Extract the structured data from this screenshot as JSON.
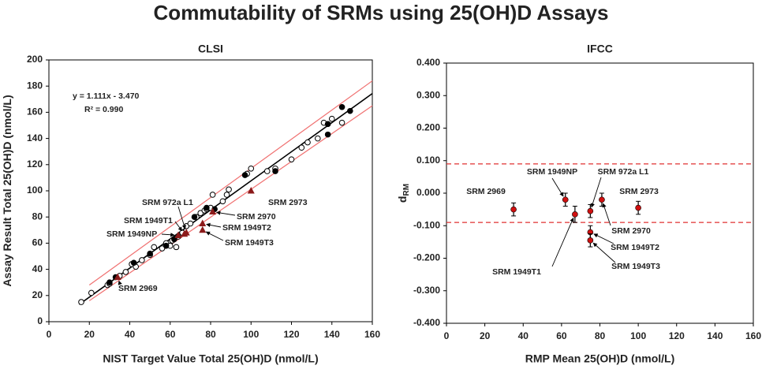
{
  "title": "Commutability of SRMs using 25(OH)D Assays",
  "chart_data": [
    {
      "type": "scatter",
      "title": "CLSI",
      "xlabel": "NIST Target Value Total 25(OH)D (nmol/L)",
      "ylabel": "Assay Result Total 25(OH)D (nmol/L)",
      "xlim": [
        0,
        160
      ],
      "ylim": [
        0,
        200
      ],
      "xticks": [
        0,
        20,
        40,
        60,
        80,
        100,
        120,
        140,
        160
      ],
      "yticks": [
        0,
        20,
        40,
        60,
        80,
        100,
        120,
        140,
        160,
        180,
        200
      ],
      "annotations": [
        "y = 1.111x - 3.470",
        "R² = 0.990"
      ],
      "lines": [
        {
          "color": "#f07070",
          "x": [
            20,
            160
          ],
          "values": [
            28,
            184
          ]
        },
        {
          "color": "#f07070",
          "x": [
            20,
            160
          ],
          "values": [
            16,
            165
          ]
        },
        {
          "color": "#000000",
          "x": [
            15,
            160
          ],
          "values": [
            13.2,
            174.3
          ]
        }
      ],
      "series": [
        {
          "color": "#000000",
          "marker": "open-circle",
          "x": [
            16,
            21,
            29,
            30,
            35,
            38,
            41,
            43,
            46,
            50,
            52,
            56,
            58,
            60,
            61,
            63,
            64,
            66,
            68,
            70,
            73,
            75,
            77,
            78,
            80,
            81,
            86,
            88,
            89,
            98,
            100,
            108,
            112,
            120,
            125,
            128,
            133,
            136,
            140,
            145
          ],
          "values": [
            15,
            22,
            28,
            29,
            35,
            38,
            44,
            42,
            47,
            51,
            57,
            56,
            60,
            58,
            62,
            57,
            65,
            68,
            73,
            75,
            80,
            83,
            85,
            86,
            87,
            97,
            92,
            97,
            101,
            113,
            117,
            115,
            117,
            124,
            133,
            137,
            140,
            152,
            155,
            152
          ]
        },
        {
          "color": "#000000",
          "marker": "circle",
          "x": [
            30,
            33,
            42,
            50,
            58,
            62,
            72,
            78,
            82,
            97,
            112,
            138,
            138,
            145,
            149
          ],
          "values": [
            30,
            34,
            45,
            52,
            58,
            63,
            80,
            87,
            86,
            112,
            115,
            151,
            143,
            164,
            161
          ]
        },
        {
          "color": "#8b1a1a",
          "marker": "triangle",
          "x": [
            34,
            64,
            67,
            68,
            81,
            76,
            76,
            100
          ],
          "values": [
            34,
            66,
            67,
            68,
            84,
            75,
            70,
            100
          ],
          "labels": [
            "SRM 2969",
            "SRM 1949NP",
            "SRM 1949T1",
            "SRM 972a L1",
            "SRM 2970",
            "SRM 1949T2",
            "SRM 1949T3",
            "SRM 2973"
          ]
        }
      ]
    },
    {
      "type": "errorbar",
      "title": "IFCC",
      "xlabel": "RMP Mean 25(OH)D (nmol/L)",
      "ylabel": "d",
      "ylabel_subscript": "RM",
      "xlim": [
        0,
        160
      ],
      "ylim": [
        -0.4,
        0.4
      ],
      "xticks": [
        0,
        20,
        40,
        60,
        80,
        100,
        120,
        140,
        160
      ],
      "yticks": [
        {
          "value": -0.4,
          "label": "-0.400"
        },
        {
          "value": -0.3,
          "label": "-0.300"
        },
        {
          "value": -0.2,
          "label": "-0.200"
        },
        {
          "value": -0.1,
          "label": "-0.100"
        },
        {
          "value": 0,
          "label": "0.000"
        },
        {
          "value": 0.1,
          "label": "0.100"
        },
        {
          "value": 0.2,
          "label": "0.200"
        },
        {
          "value": 0.3,
          "label": "0.300"
        },
        {
          "value": 0.4,
          "label": "0.400"
        }
      ],
      "reference_lines": [
        {
          "value": 0.09,
          "color": "#e03030"
        },
        {
          "value": -0.09,
          "color": "#e03030"
        }
      ],
      "series": [
        {
          "color": "#d01010",
          "marker": "circle",
          "x": [
            35,
            62,
            67,
            75,
            81,
            75,
            75,
            100
          ],
          "values": [
            -0.05,
            -0.02,
            -0.065,
            -0.055,
            -0.02,
            -0.12,
            -0.145,
            -0.045
          ],
          "errors": [
            0.02,
            0.02,
            0.025,
            0.02,
            0.02,
            0.02,
            0.02,
            0.02
          ],
          "labels": [
            "SRM 2969",
            "SRM 1949NP",
            "SRM 1949T1",
            "SRM 972a L1",
            "SRM 2970",
            "SRM 1949T2",
            "SRM 1949T3",
            "SRM 2973"
          ]
        }
      ]
    }
  ]
}
